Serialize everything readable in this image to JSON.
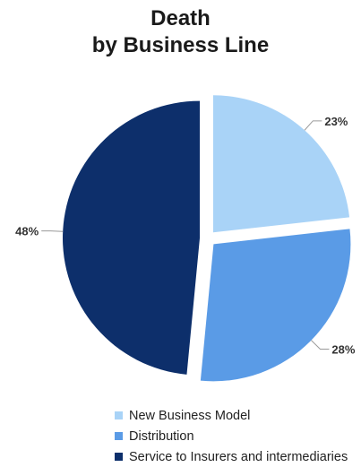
{
  "chart_data": {
    "type": "pie",
    "title": "Death",
    "subtitle": "by Business Line",
    "slices": [
      {
        "label": "New Business Model",
        "value": 23,
        "value_label": "23%",
        "color": "#a9d3f7"
      },
      {
        "label": "Distribution",
        "value": 28,
        "value_label": "28%",
        "color": "#5a9be6"
      },
      {
        "label": "Service to Insurers and intermediaries",
        "value": 48,
        "value_label": "48%",
        "color": "#0d2f6b"
      }
    ],
    "legend_position": "bottom"
  }
}
